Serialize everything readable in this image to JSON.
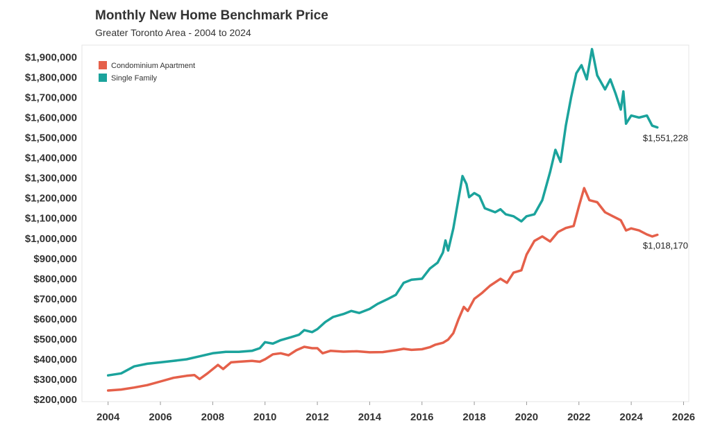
{
  "chart_data": {
    "type": "line",
    "title": "Monthly New Home Benchmark Price",
    "subtitle": "Greater Toronto Area - 2004 to 2024",
    "xlabel": "",
    "ylabel": "",
    "xlim": [
      2003.0,
      2026.2
    ],
    "ylim": [
      190000,
      1960000
    ],
    "x_ticks": [
      2004,
      2006,
      2008,
      2010,
      2012,
      2014,
      2016,
      2018,
      2020,
      2022,
      2024,
      2026
    ],
    "x_tick_labels": [
      "2004",
      "2006",
      "2008",
      "2010",
      "2012",
      "2014",
      "2016",
      "2018",
      "2020",
      "2022",
      "2024",
      "2026"
    ],
    "y_ticks": [
      200000,
      300000,
      400000,
      500000,
      600000,
      700000,
      800000,
      900000,
      1000000,
      1100000,
      1200000,
      1300000,
      1400000,
      1500000,
      1600000,
      1700000,
      1800000,
      1900000
    ],
    "y_tick_labels": [
      "$200,000",
      "$300,000",
      "$400,000",
      "$500,000",
      "$600,000",
      "$700,000",
      "$800,000",
      "$900,000",
      "$1,000,000",
      "$1,100,000",
      "$1,200,000",
      "$1,300,000",
      "$1,400,000",
      "$1,500,000",
      "$1,600,000",
      "$1,700,000",
      "$1,800,000",
      "$1,900,000"
    ],
    "grid": false,
    "legend_position": "top-left",
    "series": [
      {
        "name": "Condominium Apartment",
        "color": "#E5604A",
        "end_label": "$1,018,170",
        "points": [
          [
            2004.0,
            245000
          ],
          [
            2004.5,
            250000
          ],
          [
            2005.0,
            260000
          ],
          [
            2005.5,
            272000
          ],
          [
            2006.0,
            290000
          ],
          [
            2006.5,
            308000
          ],
          [
            2007.0,
            318000
          ],
          [
            2007.3,
            322000
          ],
          [
            2007.5,
            302000
          ],
          [
            2007.8,
            330000
          ],
          [
            2008.2,
            372000
          ],
          [
            2008.4,
            352000
          ],
          [
            2008.7,
            385000
          ],
          [
            2009.0,
            388000
          ],
          [
            2009.5,
            392000
          ],
          [
            2009.8,
            388000
          ],
          [
            2010.0,
            400000
          ],
          [
            2010.3,
            425000
          ],
          [
            2010.6,
            430000
          ],
          [
            2010.9,
            420000
          ],
          [
            2011.2,
            445000
          ],
          [
            2011.5,
            462000
          ],
          [
            2011.8,
            455000
          ],
          [
            2012.0,
            455000
          ],
          [
            2012.2,
            430000
          ],
          [
            2012.5,
            442000
          ],
          [
            2013.0,
            438000
          ],
          [
            2013.5,
            440000
          ],
          [
            2014.0,
            435000
          ],
          [
            2014.5,
            436000
          ],
          [
            2015.0,
            445000
          ],
          [
            2015.3,
            452000
          ],
          [
            2015.6,
            447000
          ],
          [
            2016.0,
            450000
          ],
          [
            2016.3,
            460000
          ],
          [
            2016.5,
            472000
          ],
          [
            2016.8,
            482000
          ],
          [
            2017.0,
            498000
          ],
          [
            2017.2,
            530000
          ],
          [
            2017.4,
            600000
          ],
          [
            2017.6,
            660000
          ],
          [
            2017.75,
            640000
          ],
          [
            2018.0,
            700000
          ],
          [
            2018.3,
            730000
          ],
          [
            2018.6,
            765000
          ],
          [
            2019.0,
            800000
          ],
          [
            2019.25,
            780000
          ],
          [
            2019.5,
            830000
          ],
          [
            2019.8,
            842000
          ],
          [
            2020.0,
            920000
          ],
          [
            2020.3,
            988000
          ],
          [
            2020.6,
            1010000
          ],
          [
            2020.9,
            985000
          ],
          [
            2021.2,
            1032000
          ],
          [
            2021.5,
            1052000
          ],
          [
            2021.8,
            1062000
          ],
          [
            2022.0,
            1160000
          ],
          [
            2022.2,
            1250000
          ],
          [
            2022.4,
            1190000
          ],
          [
            2022.7,
            1180000
          ],
          [
            2023.0,
            1130000
          ],
          [
            2023.3,
            1110000
          ],
          [
            2023.6,
            1090000
          ],
          [
            2023.8,
            1040000
          ],
          [
            2024.0,
            1050000
          ],
          [
            2024.3,
            1040000
          ],
          [
            2024.6,
            1020000
          ],
          [
            2024.8,
            1010000
          ],
          [
            2025.0,
            1018170
          ]
        ]
      },
      {
        "name": "Single Family",
        "color": "#1BA39C",
        "end_label": "$1,551,228",
        "points": [
          [
            2004.0,
            320000
          ],
          [
            2004.5,
            330000
          ],
          [
            2005.0,
            365000
          ],
          [
            2005.5,
            378000
          ],
          [
            2006.0,
            385000
          ],
          [
            2006.5,
            392000
          ],
          [
            2007.0,
            400000
          ],
          [
            2007.5,
            415000
          ],
          [
            2008.0,
            430000
          ],
          [
            2008.5,
            437000
          ],
          [
            2009.0,
            437000
          ],
          [
            2009.5,
            442000
          ],
          [
            2009.8,
            455000
          ],
          [
            2010.0,
            485000
          ],
          [
            2010.3,
            478000
          ],
          [
            2010.6,
            495000
          ],
          [
            2011.0,
            510000
          ],
          [
            2011.3,
            522000
          ],
          [
            2011.5,
            545000
          ],
          [
            2011.8,
            535000
          ],
          [
            2012.0,
            550000
          ],
          [
            2012.3,
            585000
          ],
          [
            2012.6,
            610000
          ],
          [
            2013.0,
            625000
          ],
          [
            2013.3,
            640000
          ],
          [
            2013.6,
            630000
          ],
          [
            2014.0,
            650000
          ],
          [
            2014.3,
            675000
          ],
          [
            2014.7,
            700000
          ],
          [
            2015.0,
            720000
          ],
          [
            2015.3,
            780000
          ],
          [
            2015.6,
            795000
          ],
          [
            2016.0,
            800000
          ],
          [
            2016.3,
            850000
          ],
          [
            2016.6,
            880000
          ],
          [
            2016.8,
            930000
          ],
          [
            2016.9,
            990000
          ],
          [
            2017.0,
            940000
          ],
          [
            2017.2,
            1050000
          ],
          [
            2017.4,
            1200000
          ],
          [
            2017.55,
            1310000
          ],
          [
            2017.7,
            1270000
          ],
          [
            2017.8,
            1205000
          ],
          [
            2018.0,
            1225000
          ],
          [
            2018.2,
            1210000
          ],
          [
            2018.4,
            1150000
          ],
          [
            2018.6,
            1140000
          ],
          [
            2018.8,
            1130000
          ],
          [
            2019.0,
            1145000
          ],
          [
            2019.2,
            1120000
          ],
          [
            2019.5,
            1110000
          ],
          [
            2019.8,
            1085000
          ],
          [
            2020.0,
            1110000
          ],
          [
            2020.3,
            1120000
          ],
          [
            2020.6,
            1190000
          ],
          [
            2020.9,
            1330000
          ],
          [
            2021.1,
            1440000
          ],
          [
            2021.3,
            1380000
          ],
          [
            2021.5,
            1560000
          ],
          [
            2021.7,
            1700000
          ],
          [
            2021.9,
            1820000
          ],
          [
            2022.1,
            1860000
          ],
          [
            2022.3,
            1790000
          ],
          [
            2022.5,
            1940000
          ],
          [
            2022.7,
            1810000
          ],
          [
            2023.0,
            1740000
          ],
          [
            2023.2,
            1790000
          ],
          [
            2023.4,
            1720000
          ],
          [
            2023.6,
            1640000
          ],
          [
            2023.7,
            1730000
          ],
          [
            2023.8,
            1570000
          ],
          [
            2024.0,
            1610000
          ],
          [
            2024.3,
            1600000
          ],
          [
            2024.6,
            1610000
          ],
          [
            2024.8,
            1560000
          ],
          [
            2025.0,
            1551228
          ]
        ]
      }
    ]
  }
}
